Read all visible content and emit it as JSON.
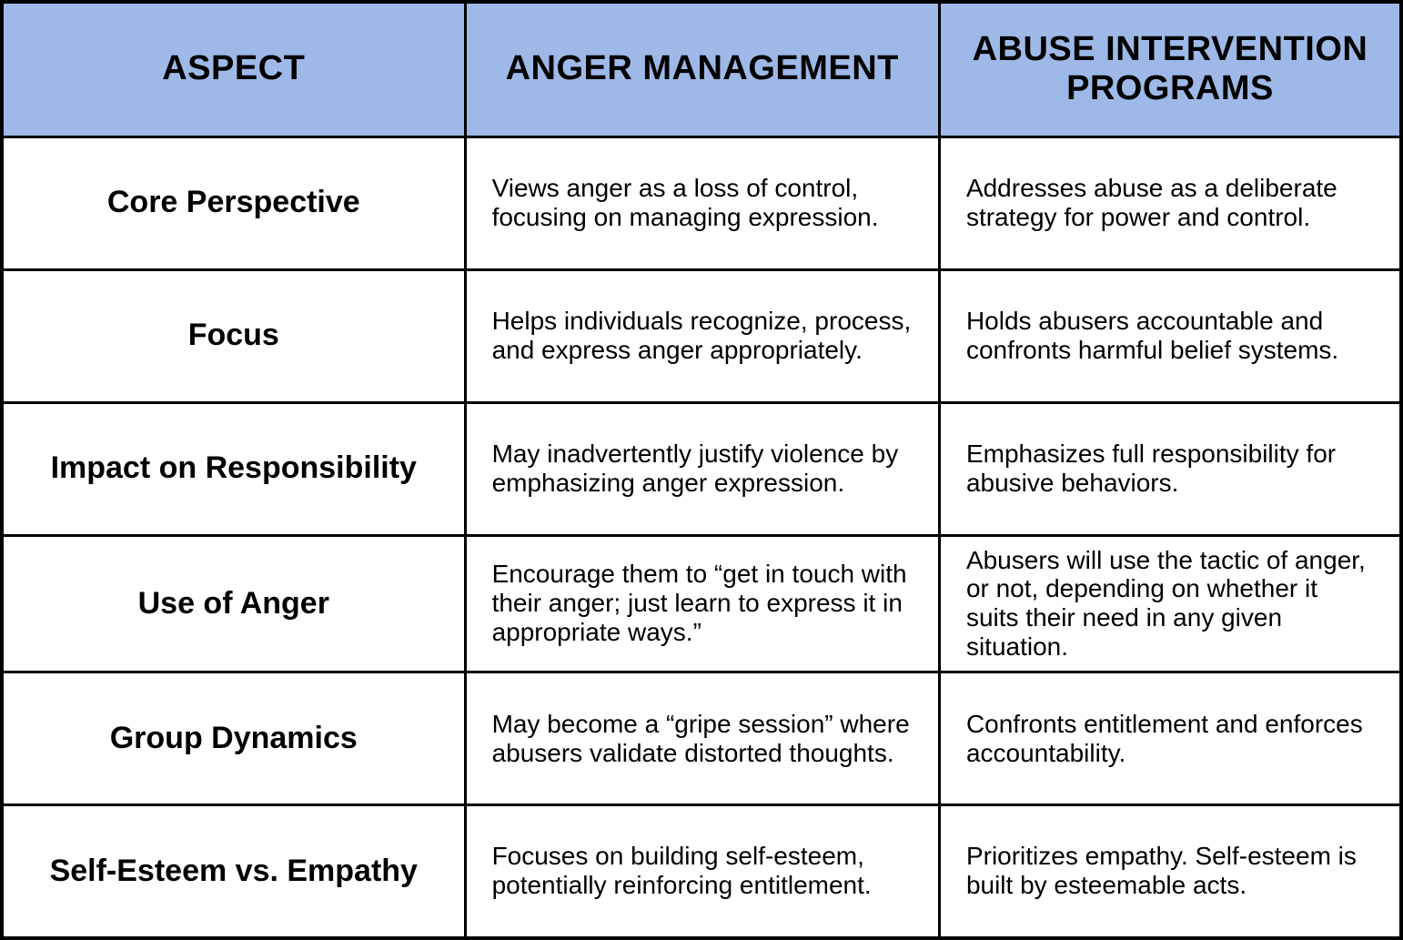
{
  "page": {
    "title": "Anger Management vs. Abuse Intervention Programs comparison table"
  },
  "colors": {
    "header_bg": "#9EB9E8",
    "border": "#000000",
    "cell_bg": "#FFFFFF",
    "text": "#000000"
  },
  "table": {
    "headers": [
      "ASPECT",
      "ANGER MANAGEMENT",
      "ABUSE INTERVENTION PROGRAMS"
    ],
    "rows": [
      {
        "aspect": "Core Perspective",
        "anger_management": "Views anger as a loss of control, focusing on managing expression.",
        "abuse_intervention": "Addresses abuse as a deliberate strategy for power and control."
      },
      {
        "aspect": "Focus",
        "anger_management": "Helps individuals recognize, process, and express anger appropriately.",
        "abuse_intervention": "Holds abusers accountable and confronts harmful belief systems."
      },
      {
        "aspect": "Impact on Responsibility",
        "anger_management": "May inadvertently justify violence by emphasizing anger expression.",
        "abuse_intervention": "Emphasizes full responsibility for abusive behaviors."
      },
      {
        "aspect": "Use of Anger",
        "anger_management": "Encourage them to “get in touch with their anger; just learn to express it in appropriate ways.”",
        "abuse_intervention": "Abusers will use the tactic of anger, or not, depending on whether it suits their need in any given situation."
      },
      {
        "aspect": "Group Dynamics",
        "anger_management": "May become a “gripe session” where abusers validate distorted thoughts.",
        "abuse_intervention": "Confronts entitlement and enforces accountability."
      },
      {
        "aspect": "Self-Esteem vs. Empathy",
        "anger_management": "Focuses on building self-esteem, potentially reinforcing entitlement.",
        "abuse_intervention": "Prioritizes empathy. Self-esteem is built by esteemable acts."
      }
    ]
  }
}
